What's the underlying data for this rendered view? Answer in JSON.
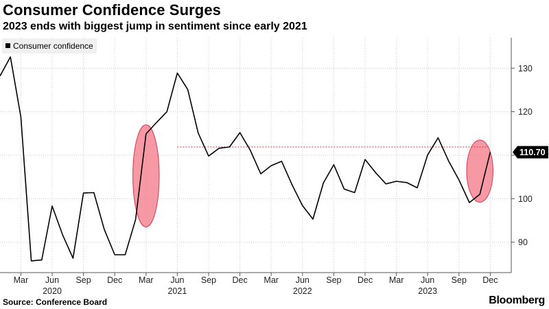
{
  "header": {
    "title": "Consumer Confidence Surges",
    "subtitle": "2023 ends with biggest jump in sentiment since early 2021"
  },
  "footer": {
    "source": "Source: Conference Board",
    "brand": "Bloomberg"
  },
  "colors": {
    "line": "#000000",
    "highlight_fill": "#f26d7d",
    "highlight_stroke": "#d9364b",
    "reference_line": "#e0283a",
    "grid": "#cccccc",
    "last_value_badge_bg": "#000000",
    "last_value_badge_text": "#ffffff"
  },
  "chart_data": {
    "type": "line",
    "title": "Consumer Confidence Surges",
    "subtitle": "2023 ends with biggest jump in sentiment since early 2021",
    "xlabel": "",
    "ylabel": "",
    "ylim": [
      83,
      137
    ],
    "y_ticks": [
      90,
      100,
      110,
      120,
      130
    ],
    "y_axis_side": "right",
    "grid": "horizontal and vertical dotted",
    "legend": {
      "placement": "top-left",
      "entries": [
        "Consumer confidence"
      ]
    },
    "x_tick_labels": [
      {
        "date": "2020-03",
        "month": "Mar",
        "year": ""
      },
      {
        "date": "2020-06",
        "month": "Jun",
        "year": "2020"
      },
      {
        "date": "2020-09",
        "month": "Sep",
        "year": ""
      },
      {
        "date": "2020-12",
        "month": "Dec",
        "year": ""
      },
      {
        "date": "2021-03",
        "month": "Mar",
        "year": ""
      },
      {
        "date": "2021-06",
        "month": "Jun",
        "year": "2021"
      },
      {
        "date": "2021-09",
        "month": "Sep",
        "year": ""
      },
      {
        "date": "2021-12",
        "month": "Dec",
        "year": ""
      },
      {
        "date": "2022-03",
        "month": "Mar",
        "year": ""
      },
      {
        "date": "2022-06",
        "month": "Jun",
        "year": "2022"
      },
      {
        "date": "2022-09",
        "month": "Sep",
        "year": ""
      },
      {
        "date": "2022-12",
        "month": "Dec",
        "year": ""
      },
      {
        "date": "2023-03",
        "month": "Mar",
        "year": ""
      },
      {
        "date": "2023-06",
        "month": "Jun",
        "year": "2023"
      },
      {
        "date": "2023-09",
        "month": "Sep",
        "year": ""
      },
      {
        "date": "2023-12",
        "month": "Dec",
        "year": ""
      }
    ],
    "series": [
      {
        "name": "Consumer confidence",
        "x": [
          "2020-01",
          "2020-02",
          "2020-03",
          "2020-04",
          "2020-05",
          "2020-06",
          "2020-07",
          "2020-08",
          "2020-09",
          "2020-10",
          "2020-11",
          "2020-12",
          "2021-01",
          "2021-02",
          "2021-03",
          "2021-04",
          "2021-05",
          "2021-06",
          "2021-07",
          "2021-08",
          "2021-09",
          "2021-10",
          "2021-11",
          "2021-12",
          "2022-01",
          "2022-02",
          "2022-03",
          "2022-04",
          "2022-05",
          "2022-06",
          "2022-07",
          "2022-08",
          "2022-09",
          "2022-10",
          "2022-11",
          "2022-12",
          "2023-01",
          "2023-02",
          "2023-03",
          "2023-04",
          "2023-05",
          "2023-06",
          "2023-07",
          "2023-08",
          "2023-09",
          "2023-10",
          "2023-11",
          "2023-12"
        ],
        "y": [
          128.2,
          132.6,
          118.8,
          85.7,
          85.9,
          98.3,
          91.7,
          86.3,
          101.3,
          101.4,
          92.9,
          87.1,
          87.1,
          95.2,
          114.9,
          117.5,
          120.0,
          128.9,
          125.1,
          115.1,
          109.8,
          111.6,
          111.9,
          115.2,
          111.1,
          105.7,
          107.6,
          108.6,
          103.2,
          98.4,
          95.3,
          103.6,
          107.8,
          102.2,
          101.4,
          109.0,
          106.0,
          103.4,
          104.0,
          103.7,
          102.5,
          110.1,
          114.0,
          108.7,
          104.3,
          99.1,
          101.0,
          110.7
        ]
      }
    ],
    "last_value_label": "110.70",
    "annotations": [
      {
        "type": "ellipse",
        "x_range": [
          "2021-02",
          "2021-04"
        ],
        "y_range": [
          93.5,
          117
        ]
      },
      {
        "type": "ellipse",
        "x_range": [
          "2023-10",
          "2023-12"
        ],
        "y_range": [
          99.2,
          113.5
        ]
      },
      {
        "type": "reference_line",
        "y": 111.9,
        "x_range": [
          "2021-06",
          "2023-12"
        ],
        "style": "dotted"
      }
    ]
  }
}
